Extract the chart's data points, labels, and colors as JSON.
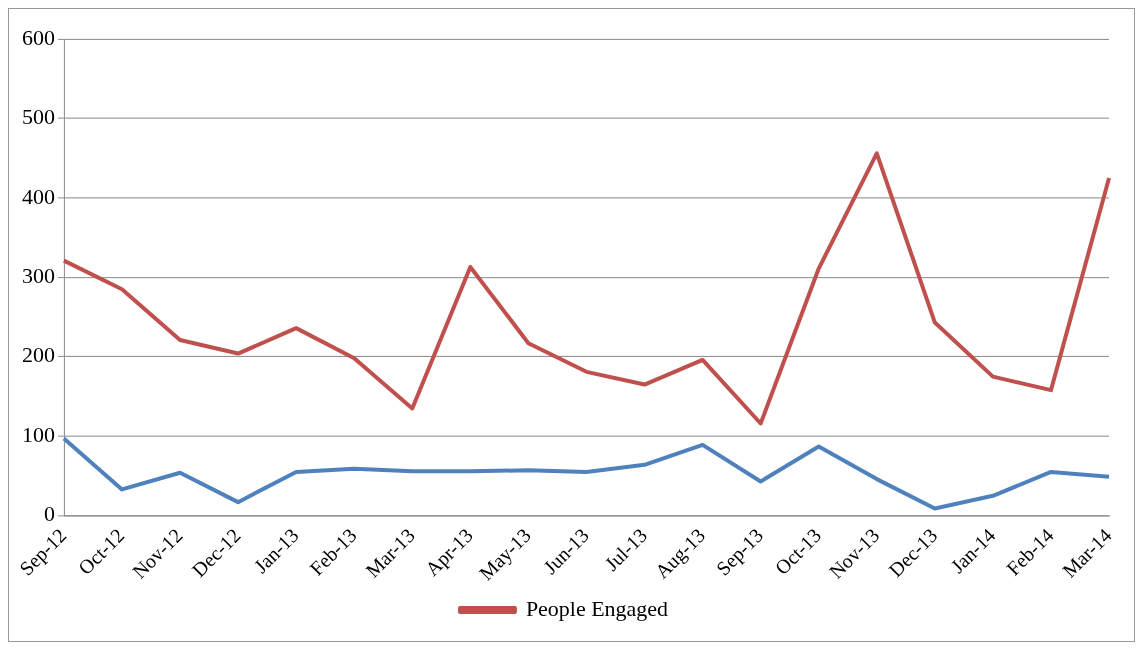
{
  "chart_data": {
    "type": "line",
    "categories": [
      "Sep-12",
      "Oct-12",
      "Nov-12",
      "Dec-12",
      "Jan-13",
      "Feb-13",
      "Mar-13",
      "Apr-13",
      "May-13",
      "Jun-13",
      "Jul-13",
      "Aug-13",
      "Sep-13",
      "Oct-13",
      "Nov-13",
      "Dec-13",
      "Jan-14",
      "Feb-14",
      "Mar-14"
    ],
    "series": [
      {
        "color": "#4f81bd",
        "values": [
          97,
          33,
          54,
          17,
          55,
          59,
          56,
          56,
          57,
          55,
          64,
          89,
          43,
          87,
          46,
          9,
          25,
          55,
          49
        ]
      },
      {
        "name": "People Engaged",
        "color": "#c0504d",
        "values": [
          321,
          285,
          221,
          204,
          236,
          198,
          135,
          313,
          217,
          181,
          165,
          196,
          116,
          311,
          456,
          243,
          175,
          158,
          425
        ]
      }
    ],
    "ylim": [
      0,
      600
    ],
    "yticks": [
      0,
      100,
      200,
      300,
      400,
      500,
      600
    ],
    "grid": "y",
    "legend": "bottom",
    "marker": "none",
    "line_style": "solid"
  }
}
